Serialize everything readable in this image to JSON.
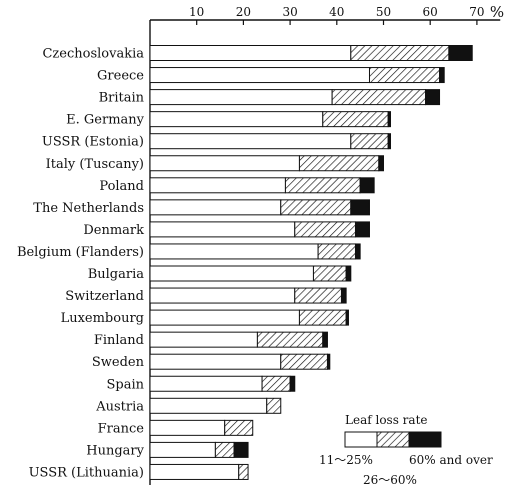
{
  "chart_data": {
    "type": "bar",
    "stacked": true,
    "orientation": "horizontal",
    "unit": "%",
    "xlim": [
      0,
      75
    ],
    "xticks": [
      10,
      20,
      30,
      40,
      50,
      60,
      70
    ],
    "categories": [
      "Czechoslovakia",
      "Greece",
      "Britain",
      "E. Germany",
      "USSR (Estonia)",
      "Italy (Tuscany)",
      "Poland",
      "The Netherlands",
      "Denmark",
      "Belgium (Flanders)",
      "Bulgaria",
      "Switzerland",
      "Luxembourg",
      "Finland",
      "Sweden",
      "Spain",
      "Austria",
      "France",
      "Hungary",
      "USSR (Lithuania)"
    ],
    "series": [
      {
        "name": "11～25%",
        "fill": "white",
        "values": [
          43,
          47,
          39,
          37,
          43,
          32,
          29,
          28,
          31,
          36,
          35,
          31,
          32,
          23,
          28,
          24,
          25,
          16,
          14,
          19
        ]
      },
      {
        "name": "26～60%",
        "fill": "hatch",
        "values": [
          21,
          15,
          20,
          14,
          8,
          17,
          16,
          15,
          13,
          8,
          7,
          10,
          10,
          14,
          10,
          6,
          3,
          6,
          4,
          2
        ]
      },
      {
        "name": "60% and over",
        "fill": "black",
        "values": [
          5,
          1,
          3,
          0.5,
          0.5,
          1,
          3,
          4,
          3,
          1,
          1,
          1,
          0.5,
          1,
          0.5,
          1,
          0,
          0,
          3,
          0
        ]
      }
    ],
    "legend": {
      "title": "Leaf loss rate",
      "labels": [
        "11～25%",
        "26～60%",
        "60% and over"
      ],
      "position": "bottom-right"
    }
  }
}
